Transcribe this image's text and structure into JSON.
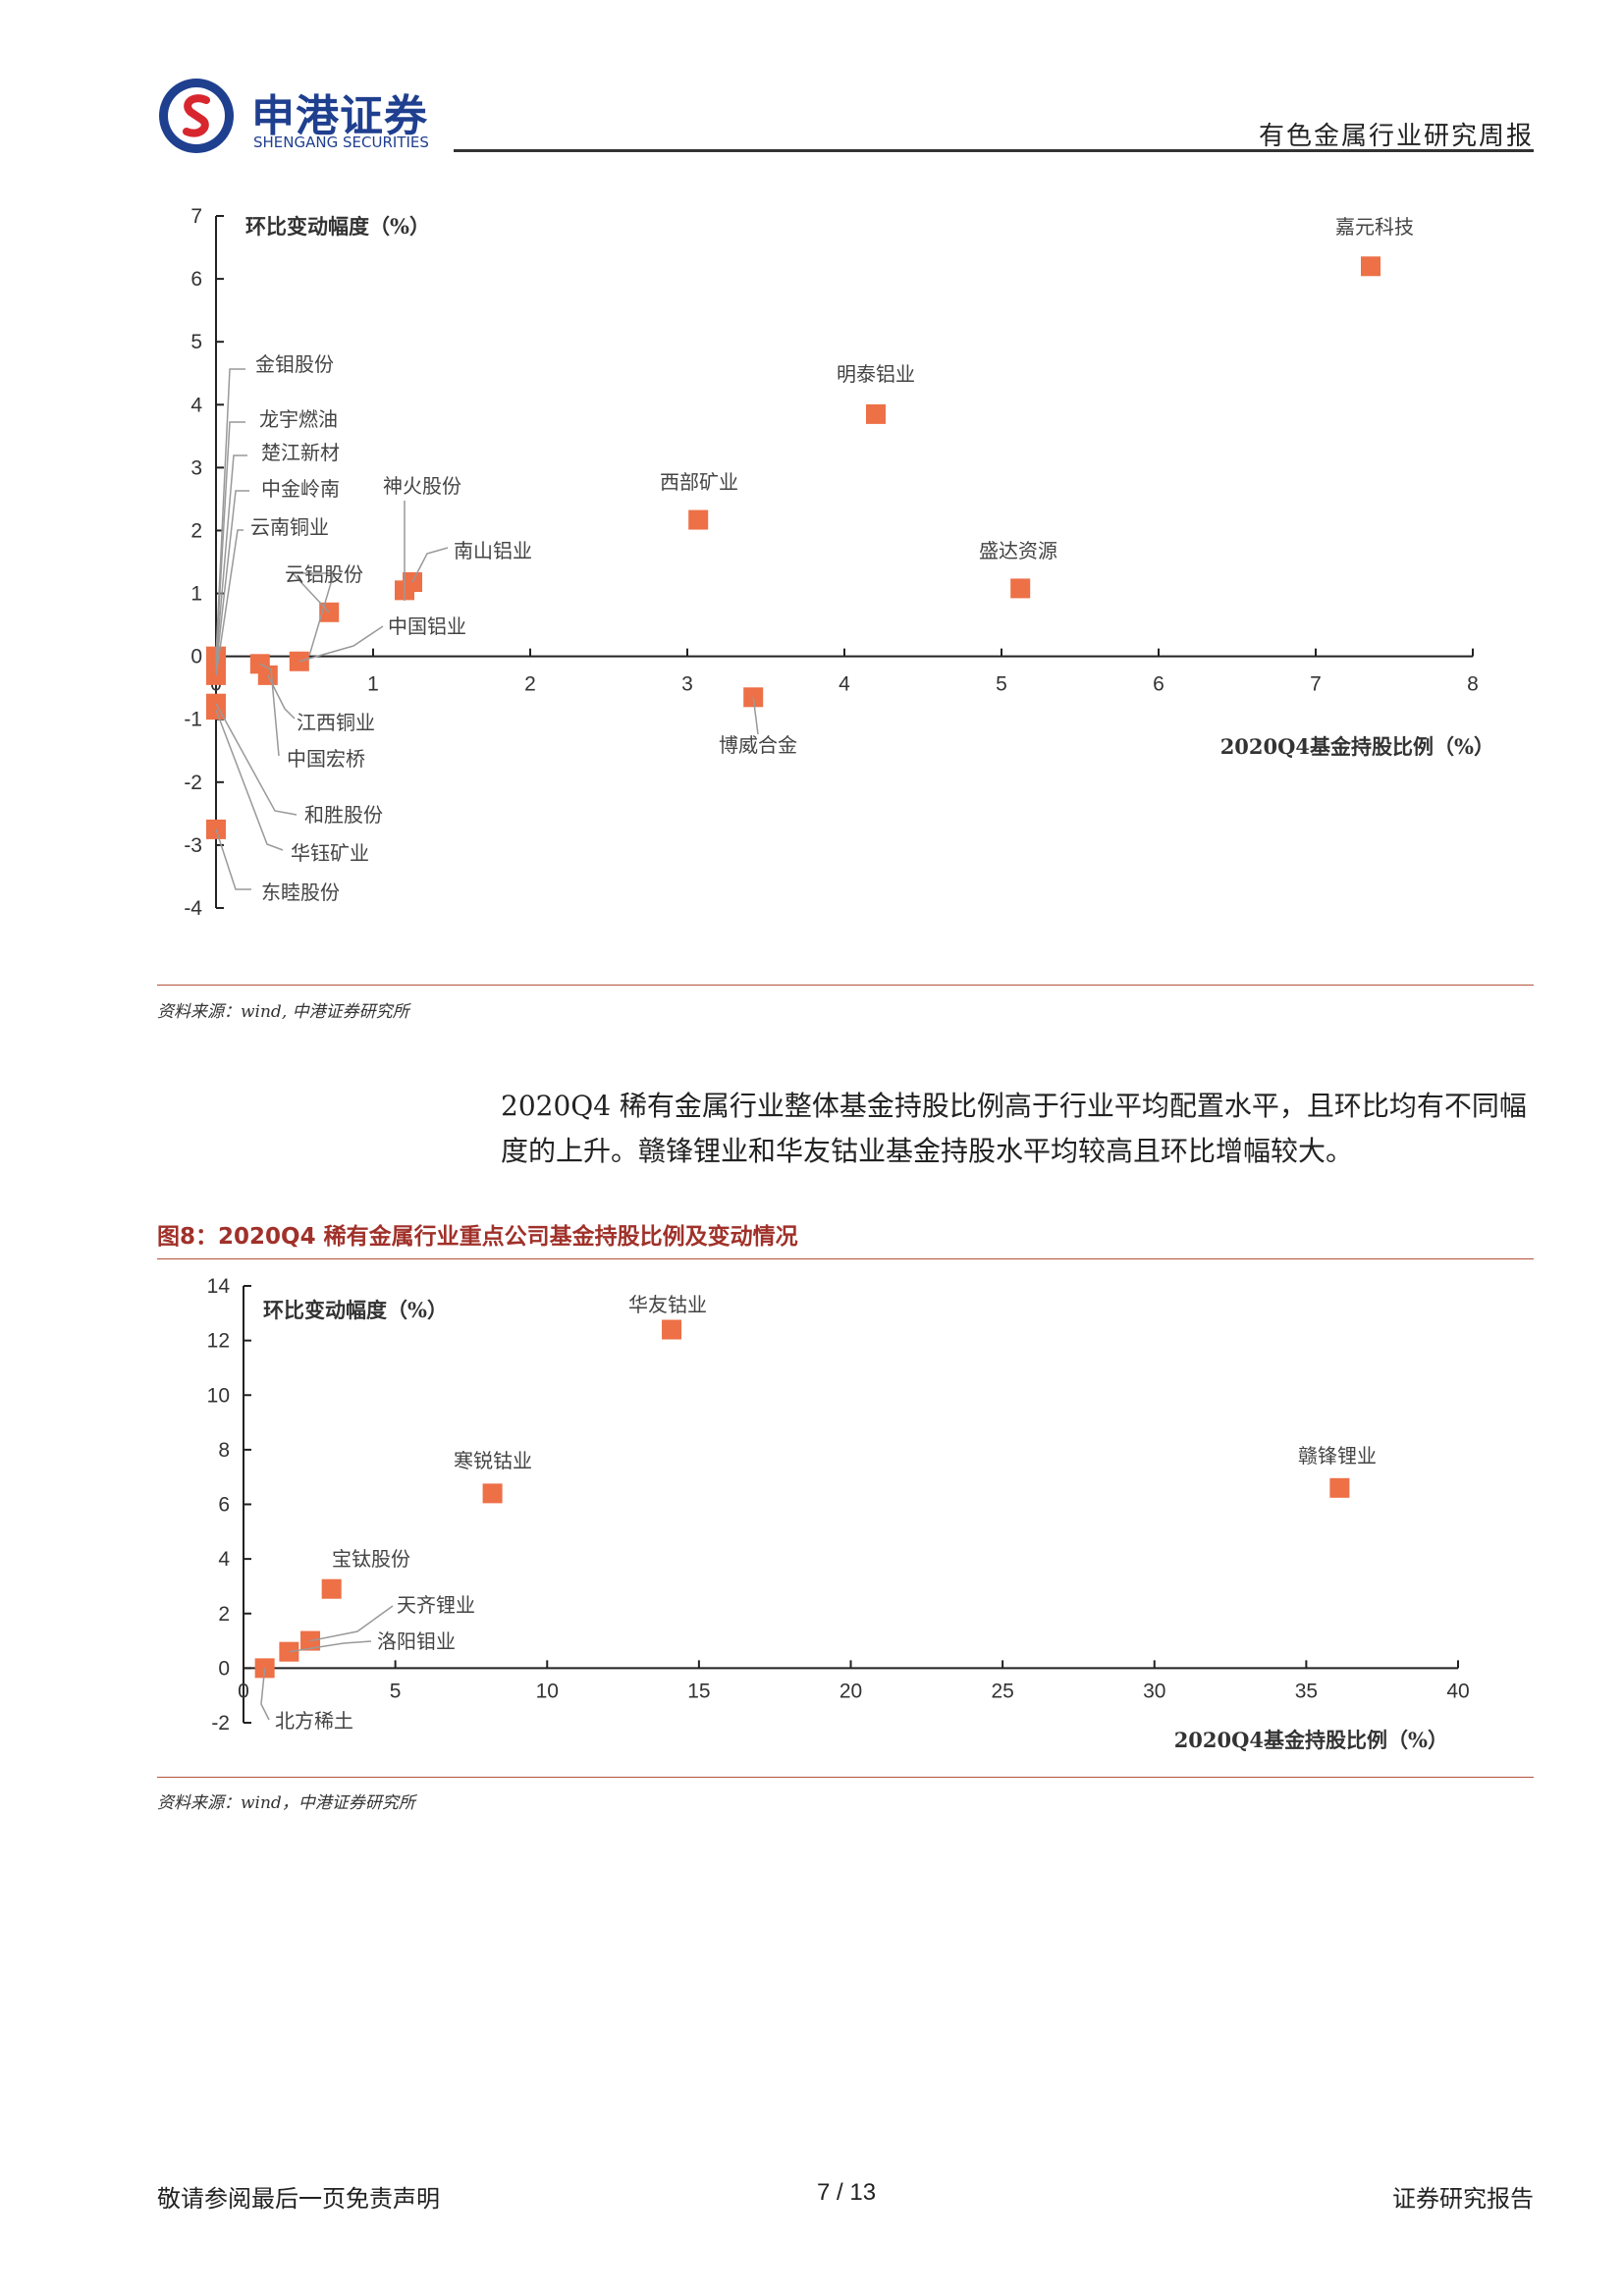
{
  "header": {
    "brand_cn": "申港证券",
    "brand_en": "SHENGANG SECURITIES",
    "report_type": "有色金属行业研究周报"
  },
  "chart1": {
    "source": "资料来源：wind, 中港证券研究所"
  },
  "body": {
    "paragraph": "2020Q4 稀有金属行业整体基金持股比例高于行业平均配置水平，且环比均有不同幅度的上升。赣锋锂业和华友钴业基金持股水平均较高且环比增幅较大。"
  },
  "chart2": {
    "title": "图8：2020Q4 稀有金属行业重点公司基金持股比例及变动情况",
    "source": "资料来源：wind，中港证券研究所"
  },
  "footer": {
    "left": "敬请参阅最后一页免责声明",
    "page": "7 / 13",
    "right": "证券研究报告"
  },
  "colors": {
    "marker": "#ed7047",
    "accent": "#a0312a",
    "brand": "#1f3f8f"
  },
  "chart_data": [
    {
      "type": "scatter",
      "xlabel": "2020Q4基金持股比例（%）",
      "ylabel": "环比变动幅度（%）",
      "xlim": [
        0,
        8
      ],
      "ylim": [
        -4,
        7
      ],
      "xticks": [
        "0",
        "1",
        "2",
        "3",
        "4",
        "5",
        "6",
        "7",
        "8"
      ],
      "yticks": [
        "7",
        "6",
        "5",
        "4",
        "3",
        "2",
        "1",
        "0",
        "-1",
        "-2",
        "-3",
        "-4"
      ],
      "points": [
        {
          "name": "嘉元科技",
          "x": 7.35,
          "y": 6.2
        },
        {
          "name": "明泰铝业",
          "x": 4.2,
          "y": 3.85
        },
        {
          "name": "西部矿业",
          "x": 3.07,
          "y": 2.17
        },
        {
          "name": "盛达资源",
          "x": 5.12,
          "y": 1.08
        },
        {
          "name": "博威合金",
          "x": 3.42,
          "y": -0.65
        },
        {
          "name": "神火股份",
          "x": 1.2,
          "y": 1.05
        },
        {
          "name": "南山铝业",
          "x": 1.25,
          "y": 1.18
        },
        {
          "name": "云铝股份",
          "x": 0.72,
          "y": 0.7
        },
        {
          "name": "中国铝业",
          "x": 0.53,
          "y": -0.08
        },
        {
          "name": "江西铜业",
          "x": 0.33,
          "y": -0.3
        },
        {
          "name": "中国宏桥",
          "x": 0.28,
          "y": -0.12
        },
        {
          "name": "金钼股份",
          "x": 0.0,
          "y": 0.0
        },
        {
          "name": "龙宇燃油",
          "x": 0.0,
          "y": -0.05
        },
        {
          "name": "楚江新材",
          "x": 0.0,
          "y": -0.1
        },
        {
          "name": "中金岭南",
          "x": 0.0,
          "y": -0.2
        },
        {
          "name": "云南铜业",
          "x": 0.0,
          "y": -0.3
        },
        {
          "name": "和胜股份",
          "x": 0.0,
          "y": -0.75
        },
        {
          "name": "华钰矿业",
          "x": 0.0,
          "y": -0.85
        },
        {
          "name": "东睦股份",
          "x": 0.0,
          "y": -2.75
        }
      ]
    },
    {
      "type": "scatter",
      "xlabel": "2020Q4基金持股比例（%）",
      "ylabel": "环比变动幅度（%）",
      "xlim": [
        0,
        40
      ],
      "ylim": [
        -2,
        14
      ],
      "xticks": [
        "0",
        "5",
        "10",
        "15",
        "20",
        "25",
        "30",
        "35",
        "40"
      ],
      "yticks": [
        "14",
        "12",
        "10",
        "8",
        "6",
        "4",
        "2",
        "0",
        "-2"
      ],
      "points": [
        {
          "name": "华友钴业",
          "x": 14.1,
          "y": 12.4
        },
        {
          "name": "寒锐钴业",
          "x": 8.2,
          "y": 6.4
        },
        {
          "name": "赣锋锂业",
          "x": 36.1,
          "y": 6.6
        },
        {
          "name": "宝钛股份",
          "x": 2.9,
          "y": 2.9
        },
        {
          "name": "天齐锂业",
          "x": 2.2,
          "y": 1.0
        },
        {
          "name": "洛阳钼业",
          "x": 1.5,
          "y": 0.6
        },
        {
          "name": "北方稀土",
          "x": 0.7,
          "y": 0.0
        }
      ]
    }
  ]
}
